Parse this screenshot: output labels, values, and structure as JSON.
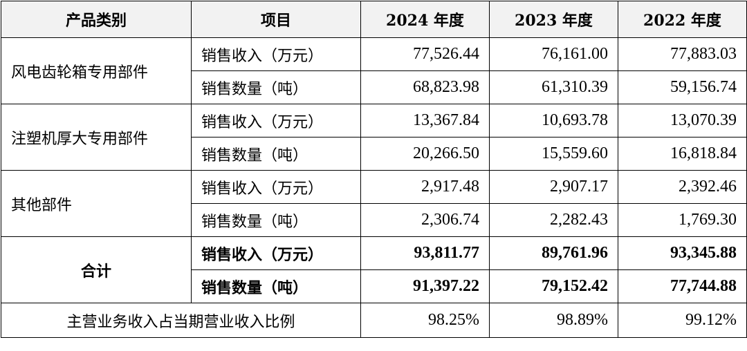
{
  "headers": [
    "产品类别",
    "项目",
    "2024 年度",
    "2023 年度",
    "2022 年度"
  ],
  "groups": [
    {
      "category": "风电齿轮箱专用部件",
      "rows": [
        {
          "item": "销售收入（万元）",
          "values": [
            "77,526.44",
            "76,161.00",
            "77,883.03"
          ]
        },
        {
          "item": "销售数量（吨）",
          "values": [
            "68,823.98",
            "61,310.39",
            "59,156.74"
          ]
        }
      ]
    },
    {
      "category": "注塑机厚大专用部件",
      "rows": [
        {
          "item": "销售收入（万元）",
          "values": [
            "13,367.84",
            "10,693.78",
            "13,070.39"
          ]
        },
        {
          "item": "销售数量（吨）",
          "values": [
            "20,266.50",
            "15,559.60",
            "16,818.84"
          ]
        }
      ]
    },
    {
      "category": "其他部件",
      "rows": [
        {
          "item": "销售收入（万元）",
          "values": [
            "2,917.48",
            "2,907.17",
            "2,392.46"
          ]
        },
        {
          "item": "销售数量（吨）",
          "values": [
            "2,306.74",
            "2,282.43",
            "1,769.30"
          ]
        }
      ]
    }
  ],
  "total": {
    "label": "合计",
    "rows": [
      {
        "item": "销售收入（万元）",
        "values": [
          "93,811.77",
          "89,761.96",
          "93,345.88"
        ]
      },
      {
        "item": "销售数量（吨）",
        "values": [
          "91,397.22",
          "79,152.42",
          "77,744.88"
        ]
      }
    ]
  },
  "ratio": {
    "label": "主营业务收入占当期营业收入比例",
    "values": [
      "98.25%",
      "98.89%",
      "99.12%"
    ]
  }
}
